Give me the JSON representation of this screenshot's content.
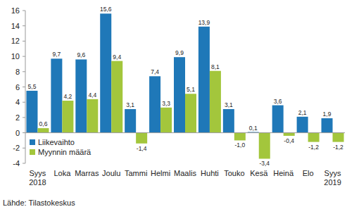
{
  "chart_data": {
    "type": "bar",
    "categories": [
      "Syys 2018",
      "Loka",
      "Marras",
      "Joulu",
      "Tammi",
      "Helmi",
      "Maalis",
      "Huhti",
      "Touko",
      "Kesä",
      "Heinä",
      "Elo",
      "Syys 2019"
    ],
    "series": [
      {
        "name": "Liikevaihto",
        "color": "#1f78b8",
        "values": [
          5.5,
          9.7,
          9.6,
          15.6,
          3.1,
          7.4,
          9.9,
          13.9,
          3.1,
          0.1,
          3.6,
          2.1,
          1.9
        ],
        "value_labels": [
          "5,5",
          "9,7",
          "9,6",
          "15,6",
          "3,1",
          "7,4",
          "9,9",
          "13,9",
          "3,1",
          "0,1",
          "3,6",
          "2,1",
          "1,9"
        ]
      },
      {
        "name": "Myynnin määrä",
        "color": "#a3c63c",
        "values": [
          0.6,
          4.2,
          4.4,
          9.4,
          -1.4,
          3.3,
          5.1,
          8.1,
          -1.0,
          -3.4,
          -0.4,
          -1.2,
          -1.2
        ],
        "value_labels": [
          "0,6",
          "4,2",
          "4,4",
          "9,4",
          "-1,4",
          "3,3",
          "5,1",
          "8,1",
          "-1,0",
          "-3,4",
          "-0,4",
          "-1,2",
          "-1,2"
        ]
      }
    ],
    "ylim": [
      -4,
      16
    ],
    "yticks": [
      -4,
      -2,
      0,
      2,
      4,
      6,
      8,
      10,
      12,
      14,
      16
    ],
    "grid": false,
    "data_labels": true,
    "legend": "lower left",
    "annotations": [
      "Lähde: Tilastokeskus"
    ]
  }
}
